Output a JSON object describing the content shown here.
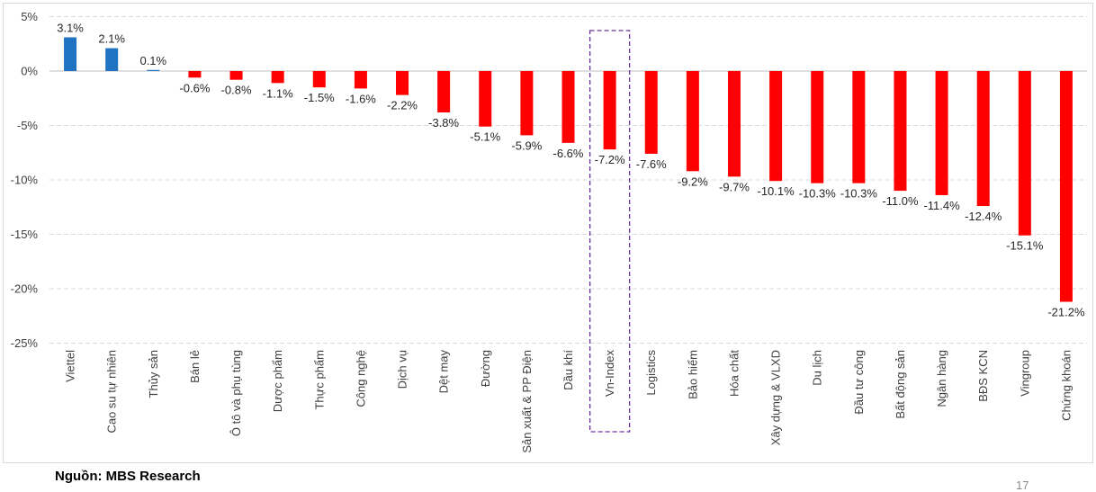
{
  "footer": {
    "source": "Nguồn: MBS Research",
    "page_number": "17"
  },
  "chart_data": {
    "type": "bar",
    "title": "",
    "xlabel": "",
    "ylabel": "",
    "ylim": [
      -25,
      5
    ],
    "y_ticks": [
      5,
      0,
      -5,
      -10,
      -15,
      -20,
      -25
    ],
    "y_tick_labels": [
      "5%",
      "0%",
      "-5%",
      "-10%",
      "-15%",
      "-20%",
      "-25%"
    ],
    "grid": true,
    "categories": [
      "Viettel",
      "Cao su tự nhiên",
      "Thủy sản",
      "Bán lẻ",
      "Ô tô và phụ tùng",
      "Dược phẩm",
      "Thực phẩm",
      "Công nghệ",
      "Dịch vụ",
      "Dệt may",
      "Đường",
      "Sản xuất & PP Điện",
      "Dầu khí",
      "Vn-Index",
      "Logistics",
      "Bảo hiểm",
      "Hóa chất",
      "Xây dựng & VLXD",
      "Du lịch",
      "Đầu tư công",
      "Bất động sản",
      "Ngân hàng",
      "BĐS KCN",
      "Vingroup",
      "Chứng khoán"
    ],
    "values": [
      3.1,
      2.1,
      0.1,
      -0.6,
      -0.8,
      -1.1,
      -1.5,
      -1.6,
      -2.2,
      -3.8,
      -5.1,
      -5.9,
      -6.6,
      -7.2,
      -7.6,
      -9.2,
      -9.7,
      -10.1,
      -10.3,
      -10.3,
      -11.0,
      -11.4,
      -12.4,
      -15.1,
      -21.2
    ],
    "value_labels": [
      "3.1%",
      "2.1%",
      "0.1%",
      "-0.6%",
      "-0.8%",
      "-1.1%",
      "-1.5%",
      "-1.6%",
      "-2.2%",
      "-3.8%",
      "-5.1%",
      "-5.9%",
      "-6.6%",
      "-7.2%",
      "-7.6%",
      "-9.2%",
      "-9.7%",
      "-10.1%",
      "-10.3%",
      "-10.3%",
      "-11.0%",
      "-11.4%",
      "-12.4%",
      "-15.1%",
      "-21.2%"
    ],
    "highlighted_category": "Vn-Index",
    "colors": {
      "positive": "#1f73c0",
      "negative": "#ff0000",
      "highlight_box": "#7030a0",
      "grid": "#d9d9d9",
      "axis_text": "#404040",
      "label_text": "#262626"
    }
  }
}
